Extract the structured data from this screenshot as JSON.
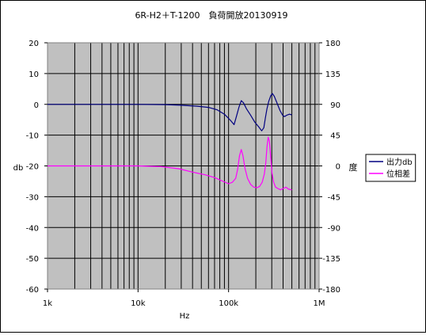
{
  "chart_data": {
    "type": "line",
    "title": "6R-H2＋T-1200　負荷開放20130919",
    "xlabel": "Hz",
    "ylabel_left": "db",
    "ylabel_right": "度",
    "x_scale": "log",
    "xlim": [
      1000,
      1000000
    ],
    "x_ticks": [
      {
        "value": 1000,
        "label": "1k"
      },
      {
        "value": 10000,
        "label": "10k"
      },
      {
        "value": 100000,
        "label": "100k"
      },
      {
        "value": 1000000,
        "label": "1M"
      }
    ],
    "ylim_left": [
      -60,
      20
    ],
    "y_ticks_left": [
      {
        "value": 20,
        "label": "20"
      },
      {
        "value": 10,
        "label": "10"
      },
      {
        "value": 0,
        "label": "0"
      },
      {
        "value": -10,
        "label": "-10"
      },
      {
        "value": -20,
        "label": "-20"
      },
      {
        "value": -30,
        "label": "-30"
      },
      {
        "value": -40,
        "label": "-40"
      },
      {
        "value": -50,
        "label": "-50"
      },
      {
        "value": -60,
        "label": "-60"
      }
    ],
    "ylim_right": [
      -180,
      180
    ],
    "y_ticks_right": [
      {
        "value": 180,
        "label": "180"
      },
      {
        "value": 135,
        "label": "135"
      },
      {
        "value": 90,
        "label": "90"
      },
      {
        "value": 45,
        "label": "45"
      },
      {
        "value": 0,
        "label": "0"
      },
      {
        "value": -45,
        "label": "-45"
      },
      {
        "value": -90,
        "label": "-90"
      },
      {
        "value": -135,
        "label": "-135"
      },
      {
        "value": -180,
        "label": "-180"
      }
    ],
    "grid": true,
    "legend_position": "right",
    "plot_background": "#c0c0c0",
    "series": [
      {
        "name": "出力db",
        "axis": "left",
        "color": "#000080",
        "points": [
          [
            1000,
            0
          ],
          [
            10000,
            0
          ],
          [
            20000,
            -0.1
          ],
          [
            30000,
            -0.3
          ],
          [
            45000,
            -0.6
          ],
          [
            60000,
            -1.0
          ],
          [
            75000,
            -1.8
          ],
          [
            90000,
            -3.2
          ],
          [
            105000,
            -5.2
          ],
          [
            115000,
            -6.6
          ],
          [
            122000,
            -4.0
          ],
          [
            130000,
            -1.0
          ],
          [
            138000,
            1.2
          ],
          [
            146000,
            0.5
          ],
          [
            158000,
            -1.5
          ],
          [
            175000,
            -3.5
          ],
          [
            195000,
            -5.8
          ],
          [
            215000,
            -7.3
          ],
          [
            232000,
            -8.6
          ],
          [
            245000,
            -7.6
          ],
          [
            255000,
            -4.5
          ],
          [
            265000,
            -1.5
          ],
          [
            278000,
            1.0
          ],
          [
            292000,
            2.8
          ],
          [
            305000,
            3.5
          ],
          [
            320000,
            2.6
          ],
          [
            345000,
            0.2
          ],
          [
            370000,
            -2.0
          ],
          [
            395000,
            -3.5
          ],
          [
            415000,
            -4.0
          ],
          [
            440000,
            -3.5
          ],
          [
            470000,
            -3.2
          ],
          [
            500000,
            -3.4
          ]
        ]
      },
      {
        "name": "位相差",
        "axis": "right",
        "color": "#ff00ff",
        "points": [
          [
            1000,
            0
          ],
          [
            10000,
            0
          ],
          [
            18000,
            -1
          ],
          [
            28000,
            -4
          ],
          [
            40000,
            -9
          ],
          [
            55000,
            -13
          ],
          [
            70000,
            -17
          ],
          [
            85000,
            -22
          ],
          [
            100000,
            -26
          ],
          [
            110000,
            -24
          ],
          [
            120000,
            -18
          ],
          [
            126000,
            -5
          ],
          [
            132000,
            15
          ],
          [
            138000,
            24
          ],
          [
            144000,
            15
          ],
          [
            152000,
            -4
          ],
          [
            162000,
            -18
          ],
          [
            175000,
            -27
          ],
          [
            190000,
            -31
          ],
          [
            205000,
            -32
          ],
          [
            220000,
            -30
          ],
          [
            235000,
            -24
          ],
          [
            248000,
            -12
          ],
          [
            258000,
            5
          ],
          [
            266000,
            28
          ],
          [
            274000,
            42
          ],
          [
            283000,
            36
          ],
          [
            292000,
            12
          ],
          [
            302000,
            -10
          ],
          [
            315000,
            -24
          ],
          [
            330000,
            -31
          ],
          [
            350000,
            -33
          ],
          [
            375000,
            -35
          ],
          [
            400000,
            -33
          ],
          [
            430000,
            -31
          ],
          [
            460000,
            -34
          ],
          [
            500000,
            -35
          ]
        ]
      }
    ]
  }
}
